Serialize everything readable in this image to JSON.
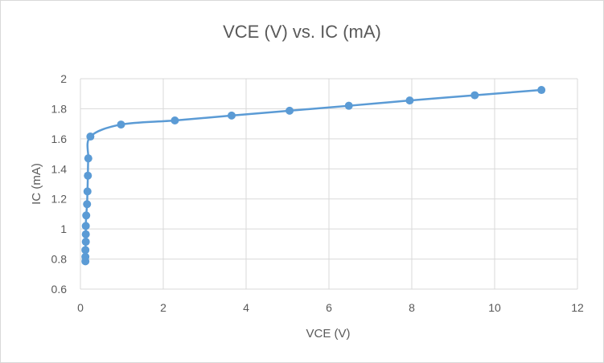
{
  "chart_data": {
    "type": "scatter",
    "title": "VCE (V) vs. IC (mA)",
    "xlabel": "VCE (V)",
    "ylabel": "IC (mA)",
    "xlim": [
      0,
      12
    ],
    "ylim": [
      0.6,
      2
    ],
    "xticks": [
      0,
      2,
      4,
      6,
      8,
      10,
      12
    ],
    "yticks": [
      0.6,
      0.8,
      1,
      1.2,
      1.4,
      1.6,
      1.8,
      2
    ],
    "grid": true,
    "smooth_line": true,
    "series": [
      {
        "color": "#5b9bd5",
        "points": [
          [
            0.12,
            0.785
          ],
          [
            0.12,
            0.815
          ],
          [
            0.12,
            0.86
          ],
          [
            0.13,
            0.915
          ],
          [
            0.13,
            0.965
          ],
          [
            0.13,
            1.02
          ],
          [
            0.14,
            1.09
          ],
          [
            0.16,
            1.165
          ],
          [
            0.17,
            1.25
          ],
          [
            0.18,
            1.355
          ],
          [
            0.19,
            1.47
          ],
          [
            0.24,
            1.615
          ],
          [
            0.98,
            1.695
          ],
          [
            2.28,
            1.722
          ],
          [
            3.65,
            1.755
          ],
          [
            5.05,
            1.787
          ],
          [
            6.48,
            1.82
          ],
          [
            7.95,
            1.855
          ],
          [
            9.52,
            1.89
          ],
          [
            11.13,
            1.925
          ]
        ]
      }
    ]
  }
}
